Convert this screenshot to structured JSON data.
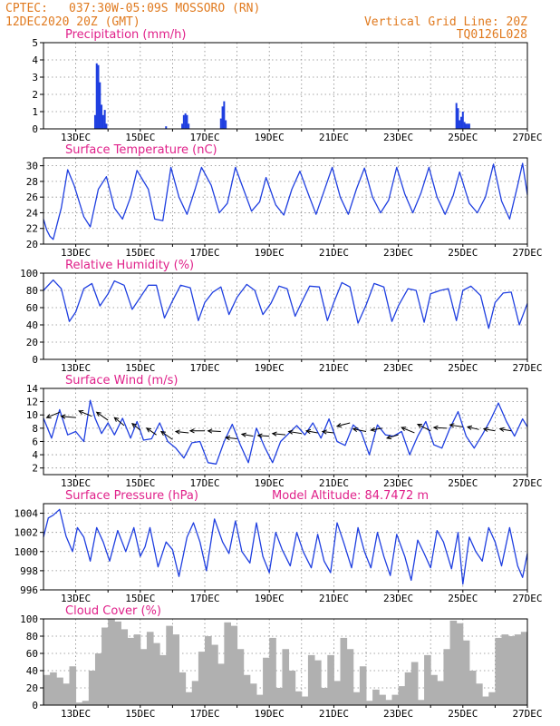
{
  "header": {
    "source": "CPTEC:",
    "location": "037:30W-05:09S   MOSSORO (RN)",
    "run": "12DEC2020 20Z (GMT)",
    "grid_note": "Vertical Grid Line: 20Z",
    "code": "TQ0126L028"
  },
  "colors": {
    "header": "#e07a1f",
    "title": "#e0218a",
    "series": "#1f3fe0",
    "cloud": "#b0b0b0"
  },
  "chart_data": [
    {
      "type": "bar",
      "title": "Precipitation (mm/h)",
      "ylim": [
        0,
        5
      ],
      "yticks": [
        0,
        1,
        2,
        3,
        4,
        5
      ],
      "xticks": [
        "13DEC",
        "15DEC",
        "17DEC",
        "19DEC",
        "21DEC",
        "23DEC",
        "25DEC",
        "27DEC"
      ],
      "grid": true,
      "x": [
        13.6,
        13.65,
        13.7,
        13.75,
        13.8,
        13.85,
        13.9,
        13.95,
        15.8,
        16.3,
        16.35,
        16.4,
        16.45,
        16.5,
        17.5,
        17.55,
        17.6,
        17.65,
        24.8,
        24.85,
        24.9,
        24.95,
        25.0,
        25.05,
        25.1,
        25.15,
        25.2
      ],
      "values": [
        0.8,
        3.8,
        3.7,
        2.7,
        1.4,
        0.8,
        1.1,
        0.3,
        0.15,
        0.3,
        0.8,
        0.9,
        0.8,
        0.3,
        0.6,
        1.3,
        1.6,
        0.5,
        1.5,
        1.2,
        0.5,
        0.7,
        1.0,
        0.4,
        0.3,
        0.3,
        0.3
      ]
    },
    {
      "type": "line",
      "title": "Surface Temperature (nC)",
      "ylim": [
        20,
        31
      ],
      "yticks": [
        20,
        22,
        24,
        26,
        28,
        30
      ],
      "xticks": [
        "13DEC",
        "15DEC",
        "17DEC",
        "19DEC",
        "21DEC",
        "23DEC",
        "25DEC",
        "27DEC"
      ],
      "grid": true,
      "x": [
        12.0,
        12.1,
        12.2,
        12.3,
        12.55,
        12.75,
        12.95,
        13.25,
        13.45,
        13.7,
        13.95,
        14.2,
        14.45,
        14.7,
        14.9,
        15.25,
        15.45,
        15.7,
        15.95,
        16.2,
        16.45,
        16.7,
        16.9,
        17.2,
        17.45,
        17.7,
        17.95,
        18.2,
        18.45,
        18.7,
        18.9,
        19.2,
        19.45,
        19.7,
        19.95,
        20.2,
        20.45,
        20.7,
        20.95,
        21.2,
        21.45,
        21.7,
        21.95,
        22.2,
        22.45,
        22.7,
        22.95,
        23.2,
        23.45,
        23.7,
        23.95,
        24.2,
        24.45,
        24.7,
        24.9,
        25.2,
        25.45,
        25.7,
        25.95,
        26.2,
        26.45,
        26.7,
        26.85,
        27.0
      ],
      "values": [
        23.2,
        21.8,
        21.0,
        20.6,
        24.6,
        29.5,
        27.5,
        23.5,
        22.2,
        27.0,
        28.6,
        24.6,
        23.2,
        26.0,
        29.4,
        27.0,
        23.2,
        23.0,
        29.8,
        26.0,
        23.8,
        27.0,
        29.8,
        27.5,
        24.0,
        25.2,
        29.8,
        27.0,
        24.2,
        25.4,
        28.5,
        25.0,
        23.7,
        27.0,
        29.3,
        26.5,
        23.8,
        26.8,
        29.8,
        26.0,
        23.8,
        27.0,
        29.7,
        26.0,
        24.0,
        25.6,
        29.8,
        26.4,
        24.0,
        26.5,
        29.8,
        26.0,
        23.8,
        26.2,
        29.2,
        25.2,
        24.0,
        26.0,
        30.2,
        25.5,
        23.2,
        27.5,
        30.3,
        26.3
      ]
    },
    {
      "type": "line",
      "title": "Relative Humidity (%)",
      "ylim": [
        0,
        100
      ],
      "yticks": [
        0,
        20,
        40,
        60,
        80,
        100
      ],
      "xticks": [
        "13DEC",
        "15DEC",
        "17DEC",
        "19DEC",
        "21DEC",
        "23DEC",
        "25DEC",
        "27DEC"
      ],
      "grid": true,
      "x": [
        12.0,
        12.3,
        12.55,
        12.8,
        13.0,
        13.25,
        13.5,
        13.75,
        14.0,
        14.2,
        14.5,
        14.75,
        15.0,
        15.25,
        15.5,
        15.75,
        16.0,
        16.25,
        16.55,
        16.8,
        17.0,
        17.25,
        17.5,
        17.75,
        18.0,
        18.3,
        18.55,
        18.8,
        19.05,
        19.3,
        19.55,
        19.8,
        20.0,
        20.25,
        20.55,
        20.8,
        21.0,
        21.25,
        21.5,
        21.75,
        22.0,
        22.25,
        22.55,
        22.8,
        23.0,
        23.3,
        23.55,
        23.8,
        24.0,
        24.3,
        24.55,
        24.8,
        25.0,
        25.25,
        25.55,
        25.8,
        26.0,
        26.25,
        26.5,
        26.75,
        27.0
      ],
      "values": [
        80,
        92,
        82,
        44,
        55,
        82,
        88,
        62,
        76,
        91,
        86,
        58,
        72,
        86,
        86,
        48,
        68,
        86,
        83,
        45,
        66,
        78,
        84,
        52,
        72,
        87,
        80,
        52,
        65,
        85,
        82,
        50,
        66,
        85,
        84,
        45,
        66,
        89,
        84,
        42,
        63,
        88,
        84,
        44,
        62,
        82,
        80,
        43,
        76,
        80,
        82,
        45,
        80,
        85,
        74,
        36,
        66,
        77,
        78,
        40,
        65
      ]
    },
    {
      "type": "line",
      "title": "Surface Wind (m/s)",
      "ylim": [
        1,
        14
      ],
      "yticks": [
        2,
        4,
        6,
        8,
        10,
        12,
        14
      ],
      "xticks": [
        "13DEC",
        "15DEC",
        "17DEC",
        "19DEC",
        "21DEC",
        "23DEC",
        "25DEC",
        "27DEC"
      ],
      "grid": true,
      "x": [
        12.0,
        12.25,
        12.5,
        12.75,
        13.0,
        13.25,
        13.45,
        13.6,
        13.8,
        14.0,
        14.2,
        14.45,
        14.7,
        14.9,
        15.1,
        15.35,
        15.6,
        15.85,
        16.1,
        16.35,
        16.6,
        16.85,
        17.1,
        17.35,
        17.6,
        17.85,
        18.1,
        18.35,
        18.6,
        18.85,
        19.1,
        19.35,
        19.6,
        19.85,
        20.1,
        20.35,
        20.6,
        20.85,
        21.1,
        21.35,
        21.6,
        21.85,
        22.1,
        22.35,
        22.6,
        22.85,
        23.1,
        23.35,
        23.6,
        23.85,
        24.1,
        24.35,
        24.6,
        24.85,
        25.1,
        25.35,
        25.6,
        25.85,
        26.1,
        26.35,
        26.6,
        26.85,
        27.0
      ],
      "values": [
        9.5,
        6.5,
        10.8,
        7.0,
        7.5,
        6.0,
        12.2,
        9.5,
        7.2,
        8.8,
        7.0,
        9.5,
        6.5,
        9.0,
        6.2,
        6.4,
        8.8,
        6.0,
        5.0,
        3.5,
        5.8,
        6.0,
        2.8,
        2.6,
        6.0,
        8.6,
        5.5,
        2.8,
        8.0,
        5.2,
        2.8,
        6.0,
        7.2,
        8.4,
        7.0,
        8.8,
        6.5,
        9.4,
        6.0,
        5.4,
        8.5,
        7.4,
        4.0,
        8.5,
        7.0,
        6.8,
        7.5,
        4.0,
        6.8,
        9.0,
        5.5,
        5.0,
        8.0,
        10.5,
        6.8,
        5.0,
        7.0,
        9.2,
        11.8,
        9.0,
        6.8,
        9.4,
        8.2
      ],
      "vectors": {
        "x": [
          12.5,
          13.0,
          13.5,
          14.0,
          14.5,
          15.0,
          15.5,
          16.0,
          16.5,
          17.0,
          17.5,
          18.0,
          18.5,
          19.0,
          19.5,
          20.0,
          20.5,
          21.0,
          21.5,
          22.0,
          22.5,
          23.0,
          23.5,
          24.0,
          24.5,
          25.0,
          25.5,
          26.0,
          26.5
        ],
        "level": [
          10.4,
          9.6,
          9.8,
          9.2,
          8.4,
          7.7,
          7.0,
          6.3,
          7.3,
          7.6,
          7.5,
          6.4,
          6.8,
          6.8,
          7.0,
          7.2,
          7.3,
          7.3,
          8.8,
          7.5,
          8.0,
          7.0,
          7.3,
          7.6,
          8.0,
          8.2,
          7.8,
          7.6,
          7.6
        ],
        "dx": [
          -0.4,
          -0.45,
          -0.4,
          -0.35,
          -0.3,
          -0.25,
          -0.3,
          -0.35,
          -0.4,
          -0.45,
          -0.4,
          -0.35,
          -0.35,
          -0.35,
          -0.4,
          -0.4,
          -0.35,
          -0.35,
          -0.4,
          -0.4,
          -0.35,
          -0.35,
          -0.4,
          -0.4,
          -0.4,
          -0.4,
          -0.35,
          -0.35,
          -0.35
        ],
        "dy": [
          -0.8,
          0.2,
          0.8,
          1.2,
          1.2,
          1.0,
          1.0,
          1.2,
          0.2,
          0.0,
          0.1,
          0.2,
          0.3,
          0.1,
          0.2,
          0.3,
          0.3,
          0.2,
          -0.5,
          0.4,
          -0.3,
          -0.5,
          0.8,
          1.0,
          0.1,
          0.3,
          0.4,
          0.3,
          0.3
        ]
      }
    },
    {
      "type": "line",
      "title": "Surface Pressure (hPa)",
      "annotation": "Model Altitude: 84.7472 m",
      "ylim": [
        996,
        1005
      ],
      "yticks": [
        996,
        998,
        1000,
        1002,
        1004
      ],
      "xticks": [
        "13DEC",
        "15DEC",
        "17DEC",
        "19DEC",
        "21DEC",
        "23DEC",
        "25DEC",
        "27DEC"
      ],
      "grid": true,
      "x": [
        12.0,
        12.15,
        12.3,
        12.5,
        12.7,
        12.9,
        13.05,
        13.25,
        13.45,
        13.65,
        13.85,
        14.05,
        14.3,
        14.55,
        14.8,
        15.0,
        15.15,
        15.3,
        15.55,
        15.8,
        16.0,
        16.2,
        16.45,
        16.65,
        16.85,
        17.05,
        17.3,
        17.55,
        17.75,
        17.95,
        18.15,
        18.4,
        18.6,
        18.8,
        19.0,
        19.2,
        19.4,
        19.65,
        19.85,
        20.05,
        20.3,
        20.5,
        20.7,
        20.9,
        21.1,
        21.3,
        21.55,
        21.75,
        21.95,
        22.15,
        22.35,
        22.55,
        22.75,
        22.95,
        23.2,
        23.4,
        23.6,
        23.8,
        24.0,
        24.2,
        24.4,
        24.65,
        24.85,
        25.0,
        25.2,
        25.4,
        25.6,
        25.8,
        26.0,
        26.2,
        26.45,
        26.7,
        26.85,
        27.0
      ],
      "values": [
        1001.5,
        1003.5,
        1003.8,
        1004.4,
        1001.6,
        1000.0,
        1002.5,
        1001.5,
        999.0,
        1002.5,
        1001.0,
        999.0,
        1002.2,
        1000.0,
        1002.5,
        999.5,
        1000.5,
        1002.5,
        998.4,
        1001.0,
        1000.2,
        997.4,
        1001.5,
        1003.0,
        1001.0,
        998.0,
        1003.4,
        1001.0,
        999.8,
        1003.2,
        1000.0,
        998.8,
        1003.0,
        999.5,
        997.8,
        1002.0,
        1000.2,
        998.5,
        1002.0,
        1000.0,
        998.3,
        1001.8,
        999.0,
        997.8,
        1003.0,
        1001.0,
        998.3,
        1002.5,
        1000.0,
        998.3,
        1002.0,
        999.5,
        997.5,
        1001.8,
        999.5,
        997.0,
        1001.2,
        999.8,
        998.3,
        1002.2,
        1001.0,
        998.2,
        1002.0,
        996.6,
        1001.5,
        1000.0,
        999.0,
        1002.5,
        1001.0,
        998.5,
        1002.5,
        998.5,
        997.3,
        999.8
      ]
    },
    {
      "type": "bar",
      "title": "Cloud Cover (%)",
      "ylim": [
        0,
        100
      ],
      "yticks": [
        0,
        20,
        40,
        60,
        80,
        100
      ],
      "xticks": [
        "13DEC",
        "15DEC",
        "17DEC",
        "19DEC",
        "21DEC",
        "23DEC",
        "25DEC",
        "27DEC"
      ],
      "grid": true,
      "x": [
        12.0,
        12.2,
        12.4,
        12.6,
        12.8,
        13.0,
        13.2,
        13.4,
        13.6,
        13.8,
        14.0,
        14.2,
        14.4,
        14.6,
        14.8,
        15.0,
        15.2,
        15.4,
        15.6,
        15.8,
        16.0,
        16.2,
        16.4,
        16.6,
        16.8,
        17.0,
        17.2,
        17.4,
        17.6,
        17.8,
        18.0,
        18.2,
        18.4,
        18.6,
        18.8,
        19.0,
        19.2,
        19.4,
        19.6,
        19.8,
        20.0,
        20.2,
        20.4,
        20.6,
        20.8,
        21.0,
        21.2,
        21.4,
        21.6,
        21.8,
        22.0,
        22.2,
        22.4,
        22.6,
        22.8,
        23.0,
        23.2,
        23.4,
        23.6,
        23.8,
        24.0,
        24.2,
        24.4,
        24.6,
        24.8,
        25.0,
        25.2,
        25.4,
        25.6,
        25.8,
        26.0,
        26.2,
        26.4,
        26.6,
        26.8
      ],
      "values": [
        35,
        38,
        32,
        25,
        45,
        3,
        5,
        40,
        60,
        90,
        100,
        97,
        88,
        78,
        82,
        65,
        85,
        72,
        58,
        92,
        82,
        38,
        15,
        28,
        62,
        80,
        70,
        48,
        96,
        92,
        65,
        35,
        25,
        12,
        55,
        78,
        20,
        65,
        40,
        16,
        10,
        58,
        52,
        20,
        58,
        28,
        78,
        65,
        15,
        45,
        5,
        18,
        12,
        6,
        12,
        22,
        38,
        50,
        6,
        58,
        35,
        28,
        65,
        98,
        95,
        75,
        40,
        25,
        10,
        15,
        78,
        82,
        80,
        82,
        85
      ]
    }
  ]
}
